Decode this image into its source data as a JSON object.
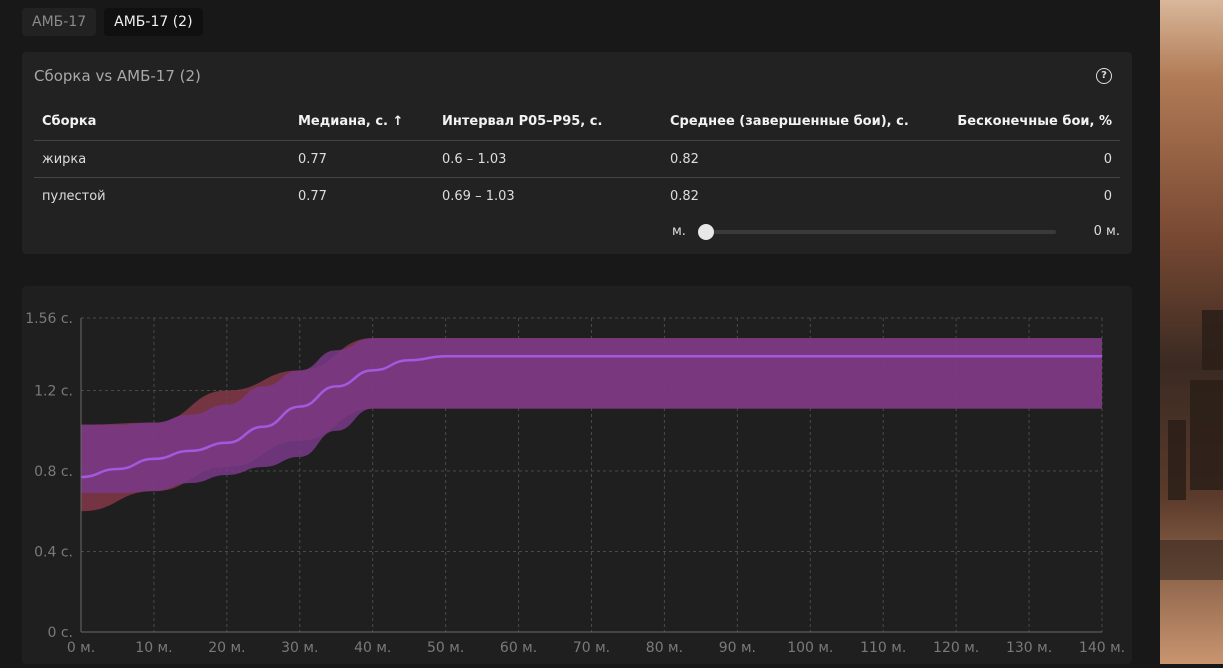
{
  "tabs": [
    {
      "label": "АМБ-17",
      "active": false
    },
    {
      "label": "АМБ-17 (2)",
      "active": true
    }
  ],
  "card": {
    "title": "Сборка vs АМБ-17 (2)",
    "help_icon": "question-circle-icon",
    "columns": [
      "Сборка",
      "Медиана, с. ↑",
      "Интервал P05–P95, с.",
      "Среднее (завершенные бои), с.",
      "Бесконечные бои, %"
    ],
    "rows": [
      [
        "жирка",
        "0.77",
        "0.6 – 1.03",
        "0.82",
        "0"
      ],
      [
        "пулестой",
        "0.77",
        "0.69 – 1.03",
        "0.82",
        "0"
      ]
    ],
    "slider": {
      "left_label": "м.",
      "right_label": "0 м.",
      "value": 0
    }
  },
  "chart_data": {
    "type": "area",
    "x": [
      0,
      10,
      20,
      30,
      40,
      50,
      60,
      70,
      80,
      90,
      100,
      110,
      120,
      130,
      140
    ],
    "x_tick_labels": [
      "0 м.",
      "10 м.",
      "20 м.",
      "30 м.",
      "40 м.",
      "50 м.",
      "60 м.",
      "70 м.",
      "80 м.",
      "90 м.",
      "100 м.",
      "110 м.",
      "120 м.",
      "130 м.",
      "140 м."
    ],
    "y_tick_values": [
      0,
      0.4,
      0.8,
      1.2,
      1.56
    ],
    "y_tick_labels": [
      "0 с.",
      "0.4 с.",
      "0.8 с.",
      "1.2 с.",
      "1.56 с."
    ],
    "xlim": [
      0,
      140
    ],
    "ylim": [
      0,
      1.56
    ],
    "grid": true,
    "series": [
      {
        "color": "#8a3a4a",
        "x": [
          0,
          10,
          20,
          30,
          40,
          50,
          140
        ],
        "lower": [
          0.6,
          0.7,
          0.82,
          0.95,
          1.11,
          1.11,
          1.11
        ],
        "upper": [
          1.03,
          1.04,
          1.2,
          1.3,
          1.46,
          1.46,
          1.46
        ]
      },
      {
        "color": "#a259e0",
        "band_color": "#7a3a8a",
        "x": [
          0,
          5,
          10,
          15,
          20,
          25,
          30,
          35,
          40,
          45,
          50,
          60,
          140
        ],
        "median": [
          0.77,
          0.81,
          0.86,
          0.9,
          0.94,
          1.02,
          1.12,
          1.22,
          1.3,
          1.35,
          1.37,
          1.37,
          1.37
        ],
        "lower": [
          0.69,
          0.69,
          0.7,
          0.74,
          0.78,
          0.82,
          0.87,
          1.0,
          1.11,
          1.11,
          1.11,
          1.11,
          1.11
        ],
        "upper": [
          1.03,
          1.03,
          1.04,
          1.08,
          1.13,
          1.22,
          1.3,
          1.4,
          1.46,
          1.46,
          1.46,
          1.46,
          1.46
        ]
      }
    ]
  }
}
